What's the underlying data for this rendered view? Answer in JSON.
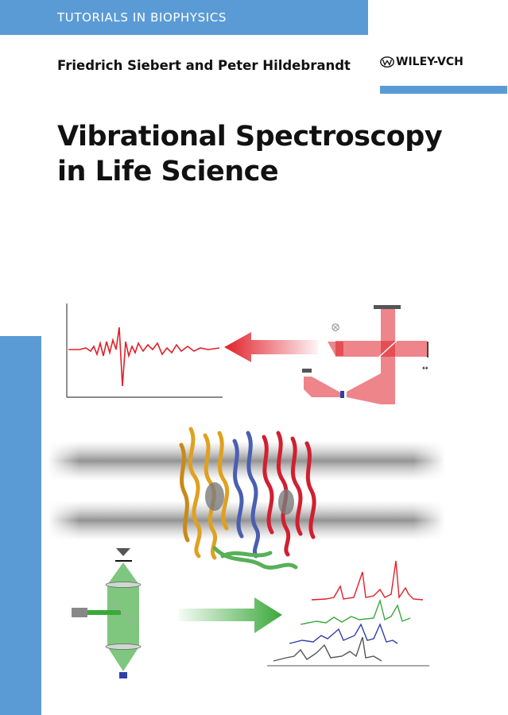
{
  "series": {
    "label": "TUTORIALS IN BIOPHYSICS"
  },
  "authors": {
    "text": "Friedrich Siebert and Peter Hildebrandt"
  },
  "publisher": {
    "name": "WILEY-VCH",
    "logo_icon": "wiley-logo-icon"
  },
  "title": {
    "line1": "Vibrational Spectroscopy",
    "line2": "in Life Science"
  },
  "colors": {
    "accent_blue": "#5b9bd5",
    "red": "#e0202a",
    "green": "#3aa83a",
    "spectrum_blue": "#3040a8",
    "gray": "#555555"
  },
  "illustration": {
    "ir_section": [
      "ir-spectrum-icon",
      "red-arrow-icon",
      "interferometer-icon"
    ],
    "protein_section": [
      "membrane-protein-icon"
    ],
    "raman_section": [
      "microscope-icon",
      "green-arrow-icon",
      "raman-spectra-icon"
    ]
  }
}
